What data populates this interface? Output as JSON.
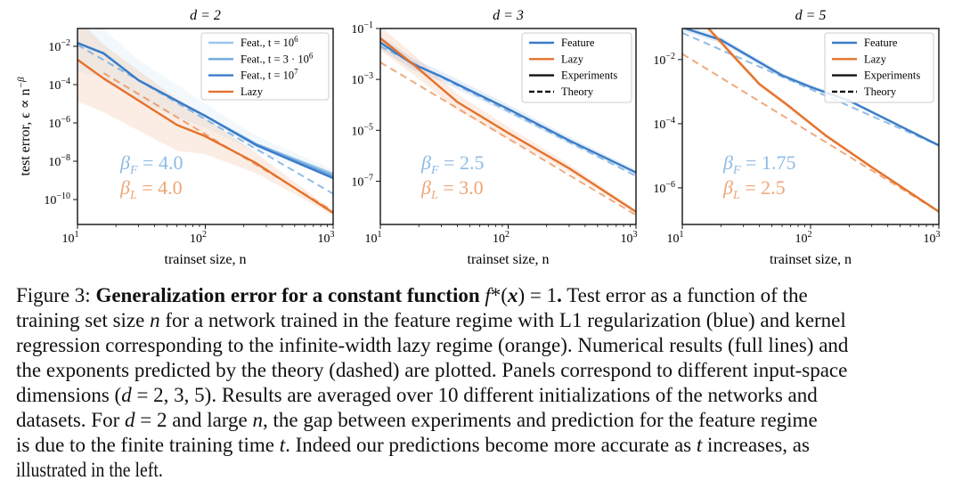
{
  "colors": {
    "feature": "#3a7cc8",
    "feature_t1e6": "#9cc6ea",
    "feature_t3e6": "#6ea6dc",
    "lazy": "#e4722c",
    "feature_text": "#8fbbe3",
    "lazy_text": "#eea676"
  },
  "ylabel": "test error, ϵ ∝ n",
  "ylabel_sup": "−β",
  "chart_data": [
    {
      "type": "line",
      "title": "d = 2",
      "xlabel": "trainset size, n",
      "ylabel": "test error, ϵ ∝ n^−β",
      "xscale": "log",
      "yscale": "log",
      "xlim": [
        10,
        1000
      ],
      "ylim": [
        5e-12,
        0.085
      ],
      "xticks": [
        {
          "base": "10",
          "exp": "1"
        },
        {
          "base": "10",
          "exp": "2"
        },
        {
          "base": "10",
          "exp": "3"
        }
      ],
      "xtick_values": [
        10,
        100,
        1000
      ],
      "yticks": [
        {
          "base": "10",
          "exp": "−2",
          "v": 0.01
        },
        {
          "base": "10",
          "exp": "−4",
          "v": 0.0001
        },
        {
          "base": "10",
          "exp": "−6",
          "v": 1e-06
        },
        {
          "base": "10",
          "exp": "−8",
          "v": 1e-08
        },
        {
          "base": "10",
          "exp": "−10",
          "v": 1e-10
        }
      ],
      "legend": {
        "placement": "top-right",
        "entries": [
          {
            "label": "Feat., t = 10",
            "sup": "6",
            "color_key": "feature_t1e6",
            "dash": false
          },
          {
            "label": "Feat., t = 3 · 10",
            "sup": "6",
            "color_key": "feature_t3e6",
            "dash": false
          },
          {
            "label": "Feat., t = 10",
            "sup": "7",
            "color_key": "feature",
            "dash": false
          },
          {
            "label": "Lazy",
            "sup": "",
            "color_key": "lazy",
            "dash": false
          }
        ]
      },
      "annotations": [
        {
          "label": "β",
          "sub": "F",
          "value": " = 4.0",
          "color_key": "feature_text"
        },
        {
          "label": "β",
          "sub": "L",
          "value": " = 4.0",
          "color_key": "lazy_text"
        }
      ],
      "series": [
        {
          "name": "Feat., t = 10^6 band",
          "color_key": "feature_t1e6",
          "kind": "band",
          "x": [
            10,
            16,
            30,
            60,
            100,
            250,
            1000
          ],
          "y": [
            0.015,
            0.0043,
            0.00017,
            1.4e-05,
            2.3e-06,
            8e-08,
            2.2e-09
          ],
          "band": [
            30,
            1.6
          ]
        },
        {
          "name": "Lazy band",
          "color_key": "lazy",
          "kind": "band",
          "x": [
            10,
            16,
            60,
            100,
            250,
            1000
          ],
          "y": [
            0.002,
            0.00021,
            7.9e-07,
            2e-07,
            7.9e-09,
            2e-11
          ],
          "band": [
            150,
            1.3
          ]
        },
        {
          "name": "Feat. theory",
          "color_key": "feature_t3e6",
          "dash": true,
          "x": [
            10,
            1000
          ],
          "y": [
            0.012,
            2e-10
          ]
        },
        {
          "name": "Lazy theory",
          "color_key": "lazy",
          "dash": true,
          "faint": true,
          "x": [
            16,
            1000
          ],
          "y": [
            0.0004,
            2.5e-11
          ]
        },
        {
          "name": "Feat., t = 10^6",
          "color_key": "feature_t1e6",
          "x": [
            10,
            16,
            30,
            60,
            100,
            250,
            1000
          ],
          "y": [
            0.015,
            0.0043,
            0.00017,
            1.4e-05,
            2.3e-06,
            8e-08,
            2.2e-09
          ]
        },
        {
          "name": "Feat., t = 3·10^6",
          "color_key": "feature_t3e6",
          "x": [
            10,
            16,
            30,
            60,
            100,
            250,
            1000
          ],
          "y": [
            0.015,
            0.0043,
            0.00017,
            1.4e-05,
            2.3e-06,
            7.5e-08,
            1.7e-09
          ]
        },
        {
          "name": "Feat., t = 10^7",
          "color_key": "feature",
          "x": [
            10,
            16,
            30,
            60,
            100,
            250,
            1000
          ],
          "y": [
            0.015,
            0.0043,
            0.00017,
            1.4e-05,
            2.3e-06,
            6.9e-08,
            1.3e-09
          ]
        },
        {
          "name": "Lazy",
          "color_key": "lazy",
          "x": [
            10,
            16,
            60,
            100,
            250,
            1000
          ],
          "y": [
            0.002,
            0.00021,
            7.9e-07,
            2e-07,
            7.9e-09,
            2e-11
          ]
        }
      ]
    },
    {
      "type": "line",
      "title": "d = 3",
      "xlabel": "trainset size, n",
      "xscale": "log",
      "yscale": "log",
      "xlim": [
        10,
        1000
      ],
      "ylim": [
        2e-09,
        0.1
      ],
      "xticks": [
        {
          "base": "10",
          "exp": "1"
        },
        {
          "base": "10",
          "exp": "2"
        },
        {
          "base": "10",
          "exp": "3"
        }
      ],
      "xtick_values": [
        10,
        100,
        1000
      ],
      "yticks": [
        {
          "base": "10",
          "exp": "−1",
          "v": 0.1
        },
        {
          "base": "10",
          "exp": "−3",
          "v": 0.001
        },
        {
          "base": "10",
          "exp": "−5",
          "v": 1e-05
        },
        {
          "base": "10",
          "exp": "−7",
          "v": 1e-07
        }
      ],
      "legend": {
        "placement": "top-right",
        "entries": [
          {
            "label": "Feature",
            "sup": "",
            "color_key": "feature",
            "dash": false
          },
          {
            "label": "Lazy",
            "sup": "",
            "color_key": "lazy",
            "dash": false
          },
          {
            "label": "Experiments",
            "sup": "",
            "color_key": "",
            "dash": false
          },
          {
            "label": "Theory",
            "sup": "",
            "color_key": "",
            "dash": true
          }
        ]
      },
      "annotations": [
        {
          "label": "β",
          "sub": "F",
          "value": " = 2.5",
          "color_key": "feature_text"
        },
        {
          "label": "β",
          "sub": "L",
          "value": " = 3.0",
          "color_key": "lazy_text"
        }
      ],
      "series": [
        {
          "name": "Feature band",
          "color_key": "feature",
          "kind": "band",
          "x": [
            10,
            18,
            30,
            100,
            300,
            1000
          ],
          "y": [
            0.028,
            0.004,
            0.0013,
            6.9e-05,
            4e-06,
            2.2e-07
          ],
          "band": [
            1.8,
            1.3
          ]
        },
        {
          "name": "Lazy band",
          "color_key": "lazy",
          "kind": "band",
          "x": [
            10,
            18,
            40,
            100,
            300,
            1000
          ],
          "y": [
            0.041,
            0.004,
            0.00013,
            7.9e-06,
            3.2e-07,
            6.3e-09
          ],
          "band": [
            3,
            1.2
          ]
        },
        {
          "name": "Feature theory",
          "color_key": "feature_t3e6",
          "dash": true,
          "x": [
            10,
            1000
          ],
          "y": [
            0.02,
            1.6e-07
          ]
        },
        {
          "name": "Lazy theory",
          "color_key": "lazy",
          "dash": true,
          "faint": true,
          "x": [
            10,
            1000
          ],
          "y": [
            0.0047,
            4.7e-09
          ]
        },
        {
          "name": "Feature",
          "color_key": "feature",
          "x": [
            10,
            18,
            30,
            100,
            300,
            1000
          ],
          "y": [
            0.028,
            0.004,
            0.0013,
            6.9e-05,
            4e-06,
            2.2e-07
          ]
        },
        {
          "name": "Lazy",
          "color_key": "lazy",
          "x": [
            10,
            18,
            40,
            100,
            300,
            1000
          ],
          "y": [
            0.041,
            0.004,
            0.00013,
            7.9e-06,
            3.2e-07,
            6.3e-09
          ]
        }
      ]
    },
    {
      "type": "line",
      "title": "d = 5",
      "xlabel": "trainset size, n",
      "xscale": "log",
      "yscale": "log",
      "xlim": [
        10,
        1000
      ],
      "ylim": [
        7.2e-08,
        0.093
      ],
      "xticks": [
        {
          "base": "10",
          "exp": "1"
        },
        {
          "base": "10",
          "exp": "2"
        },
        {
          "base": "10",
          "exp": "3"
        }
      ],
      "xtick_values": [
        10,
        100,
        1000
      ],
      "yticks": [
        {
          "base": "10",
          "exp": "−2",
          "v": 0.01
        },
        {
          "base": "10",
          "exp": "−4",
          "v": 0.0001
        },
        {
          "base": "10",
          "exp": "−6",
          "v": 1e-06
        }
      ],
      "legend": {
        "placement": "top-right",
        "entries": [
          {
            "label": "Feature",
            "sup": "",
            "color_key": "feature",
            "dash": false
          },
          {
            "label": "Lazy",
            "sup": "",
            "color_key": "lazy",
            "dash": false
          },
          {
            "label": "Experiments",
            "sup": "",
            "color_key": "",
            "dash": false
          },
          {
            "label": "Theory",
            "sup": "",
            "color_key": "",
            "dash": true
          }
        ]
      },
      "annotations": [
        {
          "label": "β",
          "sub": "F",
          "value": " = 1.75",
          "color_key": "feature_text"
        },
        {
          "label": "β",
          "sub": "L",
          "value": " = 2.5",
          "color_key": "lazy_text"
        }
      ],
      "series": [
        {
          "name": "Feature band",
          "color_key": "feature",
          "kind": "band",
          "x": [
            10,
            20,
            60,
            100,
            200,
            1000
          ],
          "y": [
            0.1,
            0.041,
            0.0032,
            0.0014,
            0.00052,
            2.1e-05
          ],
          "band": [
            1.3,
            1.1
          ]
        },
        {
          "name": "Lazy band",
          "color_key": "lazy",
          "kind": "band",
          "x": [
            13,
            16,
            25,
            40,
            65,
            130,
            300,
            1000
          ],
          "y": [
            0.25,
            0.093,
            0.013,
            0.0017,
            0.0004,
            4.4e-05,
            4.4e-06,
            1.8e-07
          ],
          "band": [
            1.3,
            1.1
          ]
        },
        {
          "name": "Feature theory",
          "color_key": "feature_t3e6",
          "dash": true,
          "x": [
            10,
            1000
          ],
          "y": [
            0.068,
            2.1e-05
          ]
        },
        {
          "name": "Lazy theory",
          "color_key": "lazy",
          "dash": true,
          "faint": true,
          "x": [
            10,
            1000
          ],
          "y": [
            0.015,
            1.8e-07
          ]
        },
        {
          "name": "Feature",
          "color_key": "feature",
          "x": [
            10,
            20,
            60,
            100,
            200,
            1000
          ],
          "y": [
            0.1,
            0.041,
            0.0032,
            0.0014,
            0.00052,
            2.1e-05
          ]
        },
        {
          "name": "Lazy",
          "color_key": "lazy",
          "x": [
            13,
            16,
            25,
            40,
            65,
            130,
            300,
            1000
          ],
          "y": [
            0.25,
            0.093,
            0.013,
            0.0017,
            0.0004,
            4.4e-05,
            4.4e-06,
            1.8e-07
          ]
        }
      ]
    }
  ],
  "caption": {
    "lines": [
      [
        {
          "t": "Figure 3: ",
          "s": ""
        },
        {
          "t": "Generalization error for a constant function ",
          "s": "b"
        },
        {
          "t": "f",
          "s": "i"
        },
        {
          "t": "*(",
          "s": ""
        },
        {
          "t": "x",
          "s": "i b"
        },
        {
          "t": ") = 1",
          "s": ""
        },
        {
          "t": ".",
          "s": "b"
        },
        {
          "t": " Test error as a function of the",
          "s": ""
        }
      ],
      [
        {
          "t": "training set size ",
          "s": ""
        },
        {
          "t": "n",
          "s": "i"
        },
        {
          "t": " for a network trained in the feature regime with L1 regularization (blue) and kernel",
          "s": ""
        }
      ],
      [
        {
          "t": "regression corresponding to the infinite-width lazy regime (orange). Numerical results (full lines) and",
          "s": ""
        }
      ],
      [
        {
          "t": "the exponents predicted by the theory (dashed) are plotted. Panels correspond to different input-space",
          "s": ""
        }
      ],
      [
        {
          "t": "dimensions (",
          "s": ""
        },
        {
          "t": "d",
          "s": "i"
        },
        {
          "t": " = 2, 3, 5). Results are averaged over 10 different initializations of the networks and",
          "s": ""
        }
      ],
      [
        {
          "t": "datasets. For ",
          "s": ""
        },
        {
          "t": "d",
          "s": "i"
        },
        {
          "t": " = 2 and large ",
          "s": ""
        },
        {
          "t": "n",
          "s": "i"
        },
        {
          "t": ", the gap between experiments and prediction for the feature regime",
          "s": ""
        }
      ],
      [
        {
          "t": "is due to the finite training time ",
          "s": ""
        },
        {
          "t": "t",
          "s": "i"
        },
        {
          "t": ". Indeed our predictions become more accurate as ",
          "s": ""
        },
        {
          "t": "t",
          "s": "i"
        },
        {
          "t": " increases, as",
          "s": ""
        }
      ],
      [
        {
          "t": "illustrated in the left.",
          "s": ""
        }
      ]
    ]
  }
}
